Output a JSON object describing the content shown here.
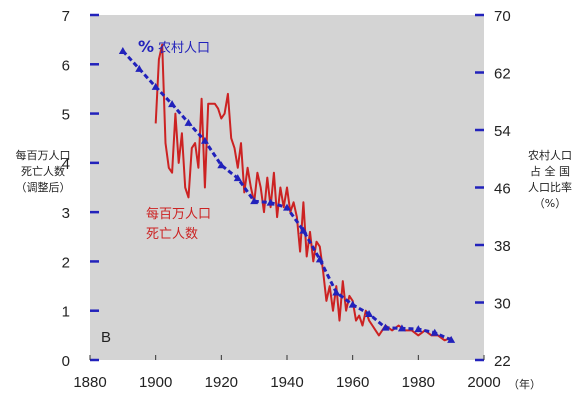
{
  "chart_data": {
    "type": "line",
    "panel_label": "B",
    "x_axis": {
      "range": [
        1880,
        2000
      ],
      "ticks": [
        1880,
        1900,
        1920,
        1940,
        1960,
        1980,
        2000
      ],
      "tick_labels": [
        "1880",
        "1900",
        "1920",
        "1940",
        "1960",
        "1980",
        "2000"
      ],
      "unit_label": "（年）"
    },
    "y_left": {
      "range": [
        0,
        7
      ],
      "ticks": [
        0,
        1,
        2,
        3,
        4,
        5,
        6,
        7
      ],
      "tick_labels": [
        "0",
        "1",
        "2",
        "3",
        "4",
        "5",
        "6",
        "7"
      ],
      "label_lines": [
        "每百万人口",
        "死亡人数",
        "（调整后）"
      ]
    },
    "y_right": {
      "range": [
        22,
        70
      ],
      "ticks": [
        22,
        30,
        38,
        46,
        54,
        62,
        70
      ],
      "tick_labels": [
        "22",
        "30",
        "38",
        "46",
        "54",
        "62",
        "70"
      ],
      "label_lines": [
        "农村人口",
        "占 全 国",
        "人口比率",
        "（%）"
      ]
    },
    "grid": false,
    "background_color": "#d4d4d4",
    "series": [
      {
        "name_lines": [
          "每百万人口",
          "死亡人数"
        ],
        "axis": "left",
        "color": "#cc2222",
        "style": "solid",
        "x": [
          1900,
          1901,
          1902,
          1903,
          1904,
          1905,
          1906,
          1907,
          1908,
          1909,
          1910,
          1911,
          1912,
          1913,
          1914,
          1915,
          1916,
          1917,
          1918,
          1919,
          1920,
          1921,
          1922,
          1923,
          1924,
          1925,
          1926,
          1927,
          1928,
          1929,
          1930,
          1931,
          1932,
          1933,
          1934,
          1935,
          1936,
          1937,
          1938,
          1939,
          1940,
          1941,
          1942,
          1943,
          1944,
          1945,
          1946,
          1947,
          1948,
          1949,
          1950,
          1951,
          1952,
          1953,
          1954,
          1955,
          1956,
          1957,
          1958,
          1959,
          1960,
          1961,
          1962,
          1963,
          1964,
          1965,
          1966,
          1967,
          1968,
          1969,
          1970,
          1972,
          1974,
          1976,
          1978,
          1980,
          1982,
          1984,
          1986,
          1988,
          1990
        ],
        "values": [
          4.8,
          6.1,
          6.4,
          4.4,
          3.9,
          3.8,
          5.0,
          4.0,
          4.6,
          3.5,
          3.3,
          4.3,
          4.4,
          3.9,
          5.3,
          3.5,
          5.2,
          5.2,
          5.2,
          5.1,
          4.9,
          5.0,
          5.4,
          4.5,
          4.3,
          3.9,
          4.4,
          3.4,
          3.9,
          3.5,
          3.2,
          3.8,
          3.5,
          3.0,
          3.7,
          3.1,
          3.8,
          2.9,
          3.5,
          3.1,
          3.5,
          3.0,
          3.2,
          2.9,
          2.2,
          3.2,
          2.1,
          2.6,
          2.0,
          2.4,
          2.3,
          1.8,
          1.2,
          1.5,
          1.0,
          1.5,
          0.8,
          1.6,
          1.0,
          1.3,
          1.2,
          0.8,
          0.9,
          0.7,
          1.0,
          0.8,
          0.7,
          0.6,
          0.5,
          0.6,
          0.7,
          0.6,
          0.7,
          0.6,
          0.6,
          0.5,
          0.6,
          0.5,
          0.5,
          0.4,
          0.45
        ]
      },
      {
        "name": "农村人口",
        "marker_text": "%",
        "axis": "right",
        "color": "#2222bb",
        "style": "dashed-with-triangles",
        "x": [
          1890,
          1895,
          1900,
          1905,
          1910,
          1915,
          1920,
          1925,
          1930,
          1935,
          1940,
          1945,
          1950,
          1955,
          1960,
          1965,
          1970,
          1975,
          1980,
          1985,
          1990
        ],
        "values": [
          65.0,
          62.5,
          60.0,
          57.6,
          55.0,
          52.5,
          49.1,
          47.3,
          44.1,
          43.9,
          43.2,
          40.0,
          36.0,
          31.4,
          29.7,
          28.4,
          26.5,
          26.4,
          26.3,
          25.8,
          24.8
        ]
      }
    ]
  }
}
